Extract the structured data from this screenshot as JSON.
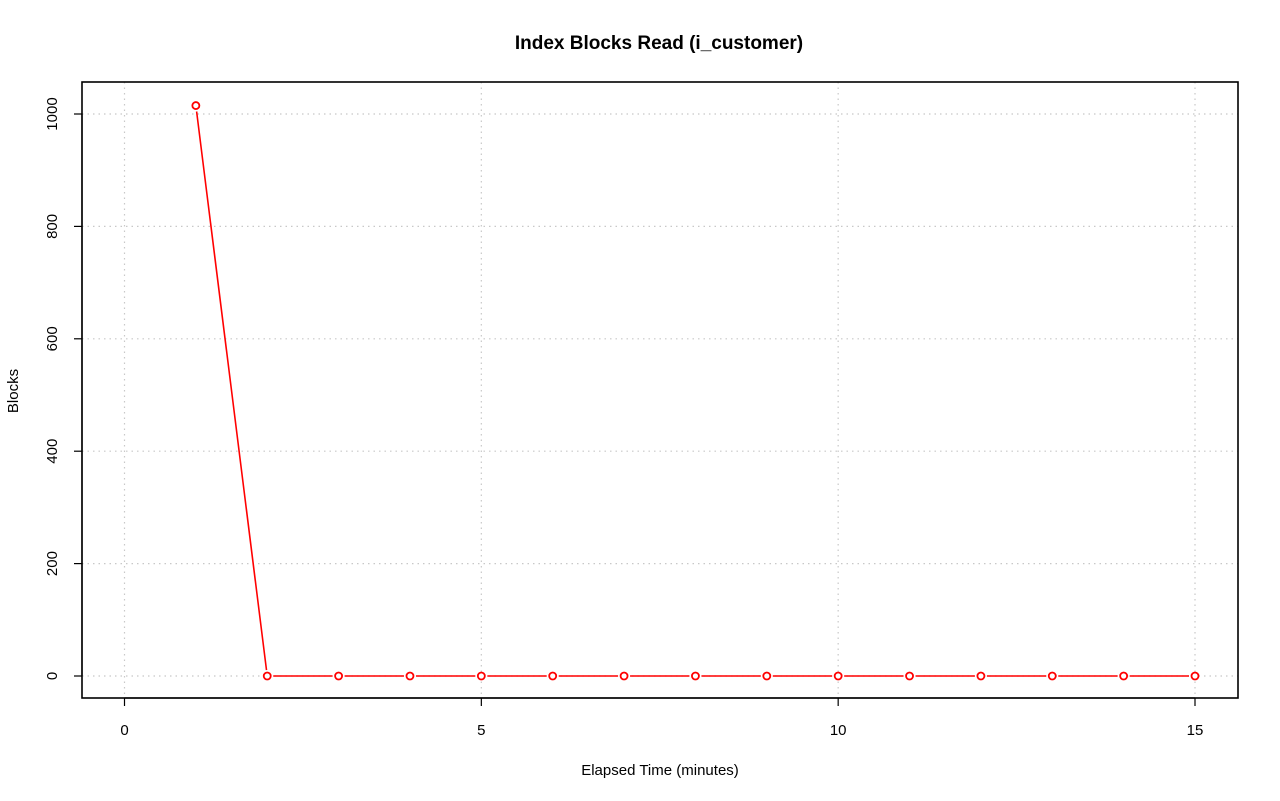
{
  "chart_data": {
    "type": "line",
    "title": "Index Blocks Read (i_customer)",
    "xlabel": "Elapsed Time (minutes)",
    "ylabel": "Blocks",
    "xlim": [
      0,
      15
    ],
    "ylim": [
      0,
      1000
    ],
    "x_ticks": [
      0,
      5,
      10,
      15
    ],
    "y_ticks": [
      0,
      200,
      400,
      600,
      800,
      1000
    ],
    "grid": true,
    "series": [
      {
        "color": "#ff0000",
        "x": [
          1,
          2,
          3,
          4,
          5,
          6,
          7,
          8,
          9,
          10,
          11,
          12,
          13,
          14,
          15
        ],
        "y": [
          1015,
          0,
          0,
          0,
          0,
          0,
          0,
          0,
          0,
          0,
          0,
          0,
          0,
          0,
          0
        ]
      }
    ]
  }
}
